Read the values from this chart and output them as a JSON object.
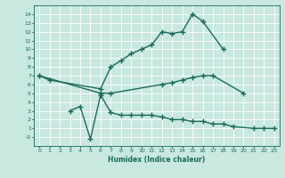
{
  "title": "",
  "xlabel": "Humidex (Indice chaleur)",
  "bg_color": "#c8e8e0",
  "grid_color": "#ffffff",
  "line_color": "#1a6b5a",
  "line_width": 1.0,
  "marker": "+",
  "markersize": 4,
  "markeredgewidth": 1.0,
  "xlim": [
    -0.5,
    23.5
  ],
  "ylim": [
    -1.0,
    15.0
  ],
  "xticks": [
    0,
    1,
    2,
    3,
    4,
    5,
    6,
    7,
    8,
    9,
    10,
    11,
    12,
    13,
    14,
    15,
    16,
    17,
    18,
    19,
    20,
    21,
    22,
    23
  ],
  "yticks": [
    0,
    1,
    2,
    3,
    4,
    5,
    6,
    7,
    8,
    9,
    10,
    11,
    12,
    13,
    14
  ],
  "ytick_labels": [
    "-0",
    "1",
    "2",
    "3",
    "4",
    "5",
    "6",
    "7",
    "8",
    "9",
    "10",
    "11",
    "12",
    "13",
    "14"
  ],
  "series": [
    {
      "x": [
        0,
        1,
        6,
        7,
        8,
        9,
        10,
        11,
        12,
        13,
        14,
        15,
        16,
        18
      ],
      "y": [
        7.0,
        6.5,
        5.5,
        8.0,
        8.7,
        9.5,
        10.0,
        10.5,
        12.0,
        11.8,
        12.0,
        14.0,
        13.2,
        10.0
      ]
    },
    {
      "x": [
        0,
        6,
        7,
        12,
        13,
        14,
        15,
        16,
        17,
        20
      ],
      "y": [
        7.0,
        5.0,
        5.0,
        6.0,
        6.2,
        6.5,
        6.8,
        7.0,
        7.0,
        5.0
      ]
    },
    {
      "x": [
        3,
        4,
        5,
        6,
        7,
        8,
        9,
        10,
        11,
        12,
        13,
        14,
        15,
        16,
        17,
        18,
        19,
        21,
        22,
        23
      ],
      "y": [
        3.0,
        3.5,
        -0.2,
        4.8,
        2.8,
        2.5,
        2.5,
        2.5,
        2.5,
        2.3,
        2.0,
        2.0,
        1.8,
        1.8,
        1.5,
        1.5,
        1.2,
        1.0,
        1.0,
        1.0
      ]
    }
  ]
}
